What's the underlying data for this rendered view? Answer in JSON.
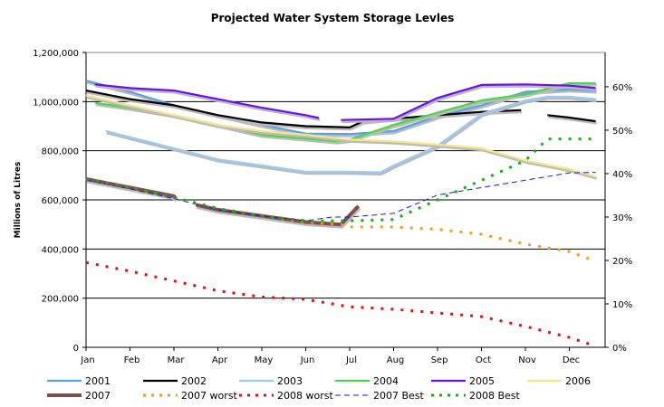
{
  "chart_data": {
    "type": "line",
    "title": "Projected Water System Storage Levles",
    "ylabel": "Millions of Litres",
    "xlabel": "",
    "categories": [
      "Jan",
      "Feb",
      "Mar",
      "Apr",
      "May",
      "Jun",
      "Jul",
      "Aug",
      "Sep",
      "Oct",
      "Nov",
      "Dec"
    ],
    "ylim": [
      0,
      1200000
    ],
    "yticks": [
      "0",
      "200,000",
      "400,000",
      "600,000",
      "800,000",
      "1,000,000",
      "1,200,000"
    ],
    "y2lim": [
      0,
      0.679
    ],
    "y2ticks": [
      "0%",
      "10%",
      "20%",
      "30%",
      "40%",
      "50%",
      "60%"
    ],
    "grid": true,
    "legend": "bottom",
    "x_note_units": "month index (0 = Jan)",
    "series": [
      {
        "name": "2001",
        "color": "#5aa0e6",
        "style": "solid",
        "points": [
          [
            0,
            1085000
          ],
          [
            1,
            1040000
          ],
          [
            2,
            985000
          ],
          [
            3,
            945000
          ],
          [
            4,
            905000
          ],
          [
            5,
            870000
          ],
          [
            6,
            868000
          ],
          [
            7,
            880000
          ],
          [
            8,
            940000
          ],
          [
            9,
            985000
          ],
          [
            10,
            1040000
          ],
          [
            11,
            1050000
          ],
          [
            11.6,
            1045000
          ]
        ]
      },
      {
        "name": "2002",
        "color": "#000000",
        "style": "solid",
        "points": [
          [
            0,
            1045000
          ],
          [
            1,
            1010000
          ],
          [
            2,
            985000
          ],
          [
            3,
            945000
          ],
          [
            4,
            915000
          ],
          [
            5,
            900000
          ],
          [
            6,
            895000
          ],
          [
            6.3,
            920000
          ],
          [
            7,
            930000
          ],
          [
            8,
            945000
          ],
          [
            9,
            958000
          ],
          [
            9.9,
            965000
          ],
          null,
          [
            10.5,
            945000
          ],
          [
            11,
            935000
          ],
          [
            11.6,
            920000
          ]
        ]
      },
      {
        "name": "2003",
        "color": "#9ccaf2",
        "style": "solid",
        "points": [
          [
            0.45,
            880000
          ],
          [
            1,
            855000
          ],
          [
            2,
            810000
          ],
          [
            3,
            765000
          ],
          [
            4,
            740000
          ],
          [
            5,
            715000
          ],
          [
            6,
            715000
          ],
          [
            6.7,
            712000
          ],
          [
            7,
            740000
          ],
          [
            8,
            820000
          ],
          [
            9,
            950000
          ],
          [
            10,
            1005000
          ],
          [
            10.5,
            1020000
          ],
          [
            11,
            1020000
          ],
          [
            11.6,
            1010000
          ]
        ]
      },
      {
        "name": "2004",
        "color": "#4cd44c",
        "style": "solid",
        "points": [
          [
            0.2,
            995000
          ],
          [
            1,
            975000
          ],
          [
            2,
            945000
          ],
          [
            3,
            905000
          ],
          [
            4,
            865000
          ],
          [
            5,
            850000
          ],
          [
            5.7,
            838000
          ],
          [
            6,
            845000
          ],
          [
            7,
            905000
          ],
          [
            8,
            955000
          ],
          [
            9,
            1005000
          ],
          [
            10,
            1030000
          ],
          [
            11,
            1075000
          ],
          [
            11.6,
            1075000
          ]
        ]
      },
      {
        "name": "2005",
        "color": "#6a10f0",
        "style": "solid",
        "points": [
          [
            0.2,
            1070000
          ],
          [
            1,
            1055000
          ],
          [
            2,
            1045000
          ],
          [
            3,
            1010000
          ],
          [
            4,
            975000
          ],
          [
            5,
            945000
          ],
          [
            5.3,
            933000
          ],
          null,
          [
            5.8,
            925000
          ],
          [
            7,
            930000
          ],
          [
            8,
            1015000
          ],
          [
            9,
            1068000
          ],
          [
            10,
            1070000
          ],
          [
            11,
            1065000
          ],
          [
            11.6,
            1055000
          ]
        ]
      },
      {
        "name": "2006",
        "color": "#f5e68a",
        "style": "solid",
        "points": [
          [
            0,
            1025000
          ],
          [
            1,
            985000
          ],
          [
            2,
            945000
          ],
          [
            3,
            905000
          ],
          [
            4,
            880000
          ],
          [
            5,
            865000
          ],
          [
            6,
            845000
          ],
          [
            7,
            838000
          ],
          [
            8,
            825000
          ],
          [
            9,
            810000
          ],
          [
            10,
            760000
          ],
          [
            11,
            725000
          ],
          [
            11.6,
            695000
          ]
        ]
      },
      {
        "name": "2007",
        "color": "#7f4f4f",
        "style": "thick",
        "points": [
          [
            0,
            685000
          ],
          [
            1,
            650000
          ],
          [
            2,
            615000
          ],
          [
            2.05,
            605000
          ],
          null,
          [
            2.5,
            580000
          ],
          [
            3,
            560000
          ],
          [
            4,
            535000
          ],
          [
            5,
            510000
          ],
          [
            5.8,
            500000
          ],
          [
            6.2,
            575000
          ]
        ]
      },
      {
        "name": "2007 worst",
        "color": "#f59a1a",
        "style": "dotted",
        "points": [
          [
            0,
            685000
          ],
          [
            1,
            650000
          ],
          [
            2,
            610000
          ],
          [
            3,
            565000
          ],
          [
            4,
            535000
          ],
          [
            5,
            510000
          ],
          [
            5.8,
            500000
          ],
          [
            6,
            490000
          ],
          [
            7,
            490000
          ],
          [
            8,
            480000
          ],
          [
            9,
            460000
          ],
          [
            10,
            420000
          ],
          [
            11,
            390000
          ],
          [
            11.6,
            350000
          ]
        ]
      },
      {
        "name": "2008 worst",
        "color": "#e01010",
        "style": "dotted",
        "points": [
          [
            0,
            345000
          ],
          [
            1,
            310000
          ],
          [
            2,
            270000
          ],
          [
            3,
            230000
          ],
          [
            4,
            205000
          ],
          [
            5,
            195000
          ],
          [
            6,
            165000
          ],
          [
            7,
            155000
          ],
          [
            8,
            140000
          ],
          [
            9,
            125000
          ],
          [
            10,
            85000
          ],
          [
            11,
            40000
          ],
          [
            11.6,
            5000
          ]
        ]
      },
      {
        "name": "2007 Best",
        "color": "#1a1ad0",
        "style": "dashed",
        "points": [
          [
            0,
            680000
          ],
          [
            1,
            645000
          ],
          [
            2,
            605000
          ],
          [
            3,
            560000
          ],
          [
            4,
            535000
          ],
          [
            5,
            515000
          ],
          [
            5.6,
            530000
          ],
          [
            6,
            530000
          ],
          [
            7,
            545000
          ],
          [
            8,
            620000
          ],
          [
            9,
            650000
          ],
          [
            10,
            680000
          ],
          [
            11,
            710000
          ],
          [
            11.6,
            712000
          ]
        ]
      },
      {
        "name": "2008 Best",
        "color": "#1aa81a",
        "style": "dotted",
        "points": [
          [
            0,
            685000
          ],
          [
            1,
            650000
          ],
          [
            2,
            610000
          ],
          [
            3,
            565000
          ],
          [
            4,
            535000
          ],
          [
            5,
            515000
          ],
          [
            6,
            515000
          ],
          [
            7,
            520000
          ],
          [
            8,
            600000
          ],
          [
            9,
            680000
          ],
          [
            10,
            760000
          ],
          [
            10.5,
            848000
          ],
          [
            11,
            848000
          ],
          [
            11.6,
            848000
          ]
        ]
      }
    ]
  }
}
